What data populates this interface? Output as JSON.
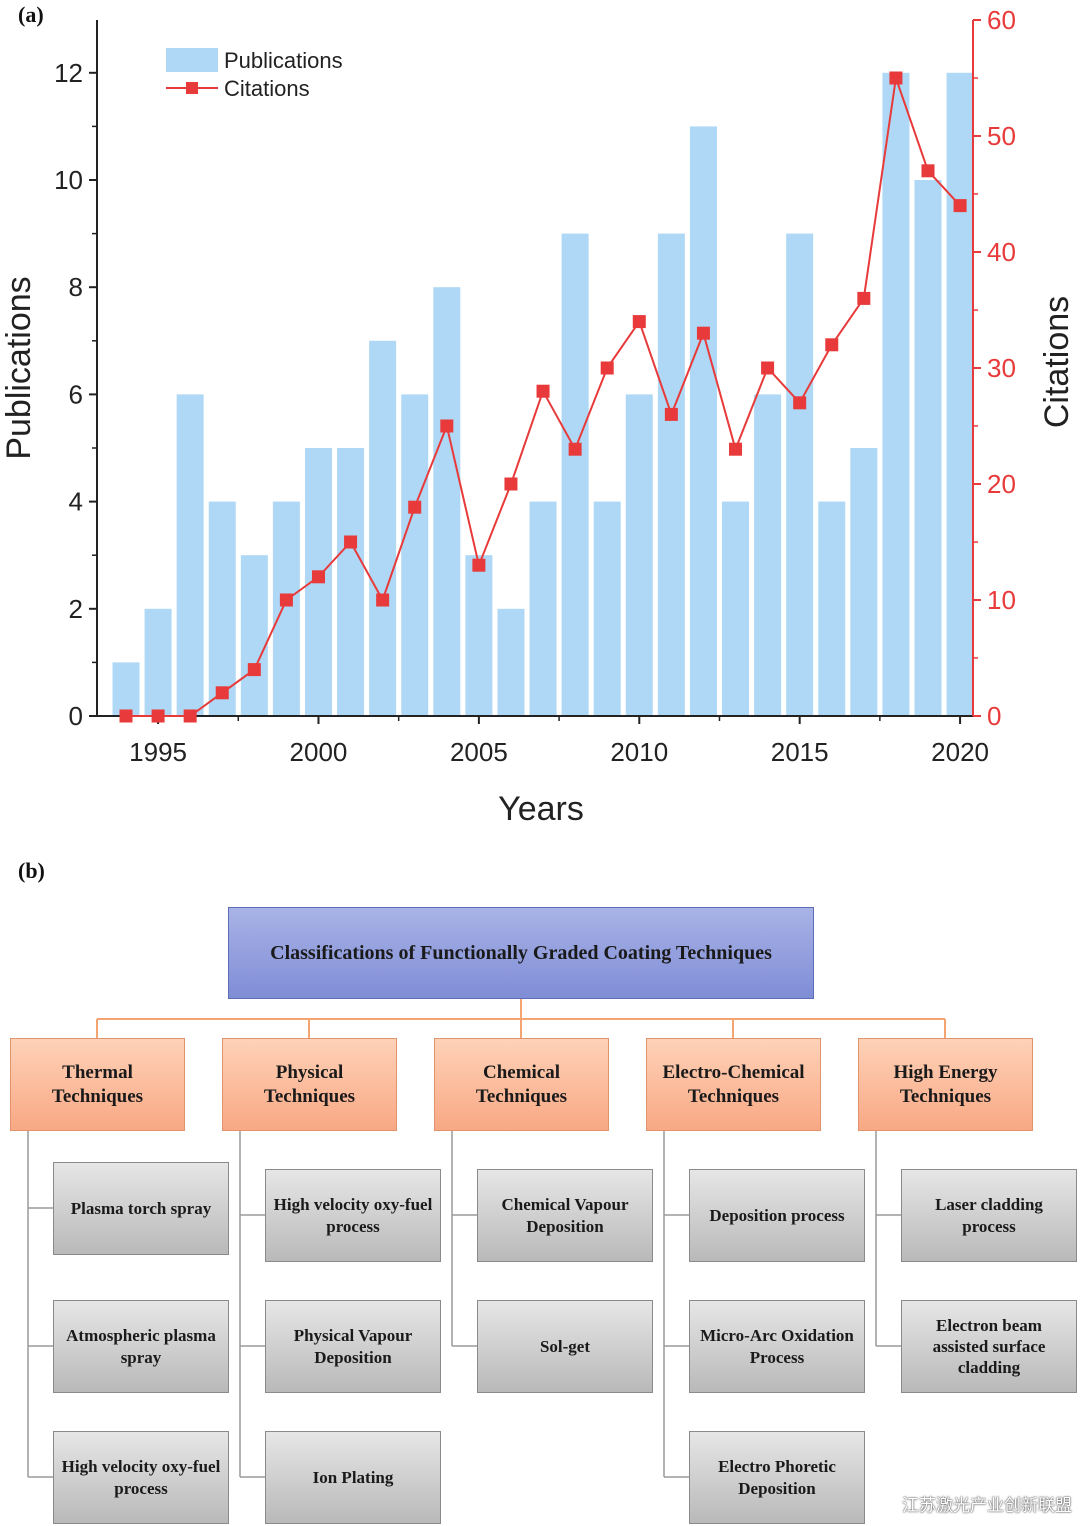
{
  "panel_a_label": "(a)",
  "panel_b_label": "(b)",
  "colors": {
    "bar": "#aed8f5",
    "citation_line": "#e83a3a",
    "right_axis": "#e83a3a",
    "root_box": "#8f9cdc",
    "category_box": "#fbb896",
    "leaf_box": "#cfcfcf",
    "connector_orange": "#f4a470",
    "connector_gray": "#9a9a9a"
  },
  "chart_data": {
    "type": "bar+line",
    "xlabel": "Years",
    "ylabel_left": "Publications",
    "ylabel_right": "Citations",
    "ylim_left": [
      0,
      13
    ],
    "ylim_right": [
      0,
      60
    ],
    "left_ticks": [
      0,
      2,
      4,
      6,
      8,
      10,
      12
    ],
    "right_ticks": [
      0,
      10,
      20,
      30,
      40,
      50,
      60
    ],
    "x_ticks": [
      1995,
      2000,
      2005,
      2010,
      2015,
      2020
    ],
    "legend": {
      "position": "top-left",
      "entries": [
        "Publications",
        "Citations"
      ]
    },
    "years": [
      1994,
      1995,
      1996,
      1997,
      1998,
      1999,
      2000,
      2001,
      2002,
      2003,
      2004,
      2005,
      2006,
      2007,
      2008,
      2009,
      2010,
      2011,
      2012,
      2013,
      2014,
      2015,
      2016,
      2017,
      2018,
      2019,
      2020
    ],
    "series": [
      {
        "name": "Publications",
        "axis": "left",
        "kind": "bar",
        "values": [
          1,
          2,
          6,
          4,
          3,
          4,
          5,
          5,
          7,
          6,
          8,
          3,
          2,
          4,
          9,
          4,
          6,
          9,
          11,
          4,
          6,
          9,
          4,
          5,
          12,
          10,
          12
        ]
      },
      {
        "name": "Citations",
        "axis": "right",
        "kind": "line-square-markers",
        "values": [
          0,
          0,
          0,
          2,
          4,
          10,
          12,
          15,
          10,
          18,
          25,
          13,
          20,
          28,
          23,
          30,
          34,
          26,
          33,
          23,
          30,
          27,
          32,
          36,
          55,
          47,
          44
        ]
      }
    ]
  },
  "diagram": {
    "root": "Classifications of Functionally Graded Coating Techniques",
    "categories": [
      {
        "label": "Thermal Techniques",
        "leaves": [
          "Plasma torch spray",
          "Atmospheric plasma spray",
          "High velocity oxy-fuel process"
        ]
      },
      {
        "label": "Physical Techniques",
        "leaves": [
          "High velocity oxy-fuel process",
          "Physical Vapour Deposition",
          "Ion Plating"
        ]
      },
      {
        "label": "Chemical Techniques",
        "leaves": [
          "Chemical Vapour Deposition",
          "Sol-get"
        ]
      },
      {
        "label": "Electro-Chemical Techniques",
        "leaves": [
          "Deposition process",
          "Micro-Arc Oxidation Process",
          "Electro Phoretic Deposition"
        ]
      },
      {
        "label": "High Energy Techniques",
        "leaves": [
          "Laser cladding process",
          "Electron beam assisted surface cladding"
        ]
      }
    ]
  },
  "watermark": "江苏激光产业创新联盟"
}
